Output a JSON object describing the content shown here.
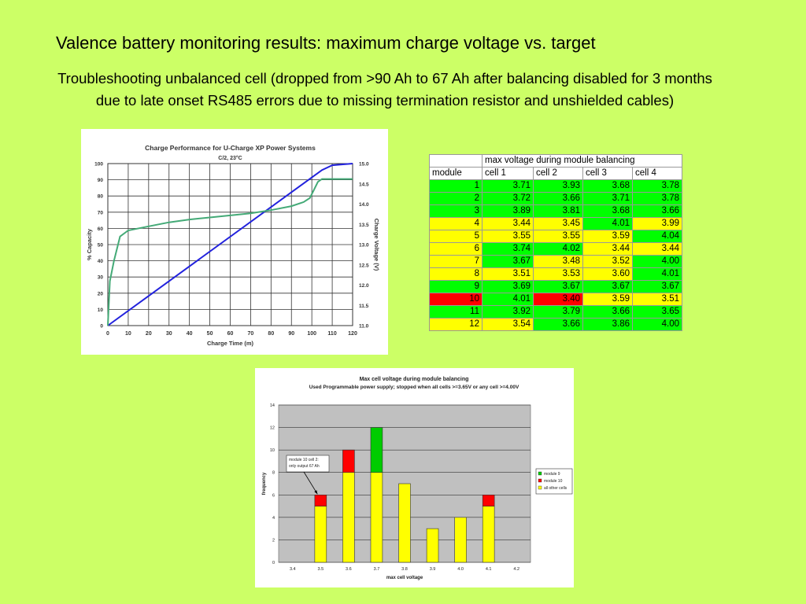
{
  "title": "Valence battery monitoring results: maximum charge voltage vs. target",
  "subtitle": "Troubleshooting unbalanced cell (dropped from >90 Ah to 67 Ah after balancing disabled for 3 months due to late onset RS485 errors due to missing termination resistor and unshielded cables)",
  "colors": {
    "background": "#ccff66",
    "green": "#00ff00",
    "yellow": "#ffff00",
    "red": "#ff0000"
  },
  "table": {
    "header": "max voltage during module balancing",
    "columns": [
      "module",
      "cell 1",
      "cell 2",
      "cell 3",
      "cell 4"
    ],
    "rows": [
      {
        "module": "1",
        "module_color": "green",
        "cells": [
          "3.71",
          "3.93",
          "3.68",
          "3.78"
        ],
        "colors": [
          "green",
          "green",
          "green",
          "green"
        ]
      },
      {
        "module": "2",
        "module_color": "green",
        "cells": [
          "3.72",
          "3.66",
          "3.71",
          "3.78"
        ],
        "colors": [
          "green",
          "green",
          "green",
          "green"
        ]
      },
      {
        "module": "3",
        "module_color": "green",
        "cells": [
          "3.89",
          "3.81",
          "3.68",
          "3.66"
        ],
        "colors": [
          "green",
          "green",
          "green",
          "green"
        ]
      },
      {
        "module": "4",
        "module_color": "yellow",
        "cells": [
          "3.44",
          "3.45",
          "4.01",
          "3.99"
        ],
        "colors": [
          "yellow",
          "yellow",
          "green",
          "yellow"
        ]
      },
      {
        "module": "5",
        "module_color": "yellow",
        "cells": [
          "3.55",
          "3.55",
          "3.59",
          "4.04"
        ],
        "colors": [
          "yellow",
          "yellow",
          "yellow",
          "green"
        ]
      },
      {
        "module": "6",
        "module_color": "yellow",
        "cells": [
          "3.74",
          "4.02",
          "3.44",
          "3.44"
        ],
        "colors": [
          "green",
          "green",
          "yellow",
          "yellow"
        ]
      },
      {
        "module": "7",
        "module_color": "yellow",
        "cells": [
          "3.67",
          "3.48",
          "3.52",
          "4.00"
        ],
        "colors": [
          "green",
          "yellow",
          "yellow",
          "green"
        ]
      },
      {
        "module": "8",
        "module_color": "yellow",
        "cells": [
          "3.51",
          "3.53",
          "3.60",
          "4.01"
        ],
        "colors": [
          "yellow",
          "yellow",
          "yellow",
          "green"
        ]
      },
      {
        "module": "9",
        "module_color": "green",
        "cells": [
          "3.69",
          "3.67",
          "3.67",
          "3.67"
        ],
        "colors": [
          "green",
          "green",
          "green",
          "green"
        ]
      },
      {
        "module": "10",
        "module_color": "red",
        "cells": [
          "4.01",
          "3.40",
          "3.59",
          "3.51"
        ],
        "colors": [
          "green",
          "red",
          "yellow",
          "yellow"
        ]
      },
      {
        "module": "11",
        "module_color": "green",
        "cells": [
          "3.92",
          "3.79",
          "3.66",
          "3.65"
        ],
        "colors": [
          "green",
          "green",
          "green",
          "green"
        ]
      },
      {
        "module": "12",
        "module_color": "yellow",
        "cells": [
          "3.54",
          "3.66",
          "3.86",
          "4.00"
        ],
        "colors": [
          "yellow",
          "green",
          "green",
          "green"
        ]
      }
    ]
  },
  "chart_data": [
    {
      "type": "line",
      "title": "Charge Performance for U-Charge XP Power Systems",
      "subtitle": "C/2, 23°C",
      "xlabel": "Charge Time (m)",
      "ylabel": "% Capacity",
      "y2label": "Charge Voltage (V)",
      "xlim": [
        0,
        120
      ],
      "ylim": [
        0,
        100
      ],
      "y2lim": [
        11.0,
        15.0
      ],
      "x_ticks": [
        "0",
        "10",
        "20",
        "30",
        "40",
        "50",
        "60",
        "70",
        "80",
        "90",
        "100",
        "110",
        "120"
      ],
      "y_ticks": [
        "0",
        "10",
        "20",
        "30",
        "40",
        "50",
        "60",
        "70",
        "80",
        "90",
        "100"
      ],
      "y2_ticks": [
        "11.0",
        "11.5",
        "12.0",
        "12.5",
        "13.0",
        "13.5",
        "14.0",
        "14.5",
        "15.0"
      ],
      "grid": true,
      "series": [
        {
          "axis": "left",
          "color": "#2222dd",
          "x": [
            0,
            105,
            110,
            120
          ],
          "y": [
            0,
            96,
            99,
            100
          ]
        },
        {
          "axis": "right",
          "color": "#44aa77",
          "x": [
            0,
            1,
            3,
            6,
            10,
            20,
            30,
            40,
            50,
            60,
            70,
            80,
            90,
            96,
            99,
            101,
            103,
            105,
            120
          ],
          "y": [
            11.0,
            12.1,
            12.6,
            13.2,
            13.35,
            13.45,
            13.55,
            13.62,
            13.67,
            13.72,
            13.77,
            13.85,
            13.95,
            14.05,
            14.15,
            14.35,
            14.55,
            14.62,
            14.62
          ]
        }
      ]
    },
    {
      "type": "bar",
      "stacked": true,
      "title": "Max cell voltage during module balancing",
      "subtitle": "Used Programmable power supply; stopped when all cells >=3.65V or any cell >=4.00V",
      "xlabel": "max cell voltage",
      "ylabel": "frequency",
      "categories": [
        "3.4",
        "3.5",
        "3.6",
        "3.7",
        "3.8",
        "3.9",
        "4.0",
        "4.1",
        "4.2"
      ],
      "ylim": [
        0,
        14
      ],
      "y_ticks": [
        "0",
        "2",
        "4",
        "6",
        "8",
        "10",
        "12",
        "14"
      ],
      "grid": true,
      "legend_position": "right",
      "series": [
        {
          "name": "all other cells",
          "color": "#ffff00",
          "values": [
            0,
            5,
            8,
            8,
            7,
            3,
            4,
            5,
            0
          ]
        },
        {
          "name": "module 10",
          "color": "#ff0000",
          "values": [
            0,
            1,
            2,
            0,
            0,
            0,
            0,
            1,
            0
          ]
        },
        {
          "name": "module 9",
          "color": "#00cc00",
          "values": [
            0,
            0,
            0,
            4,
            0,
            0,
            0,
            0,
            0
          ]
        }
      ],
      "annotation": {
        "text_lines": [
          "module 10 cell 2:",
          "only output 67 Ah"
        ],
        "category": "3.5"
      }
    }
  ]
}
